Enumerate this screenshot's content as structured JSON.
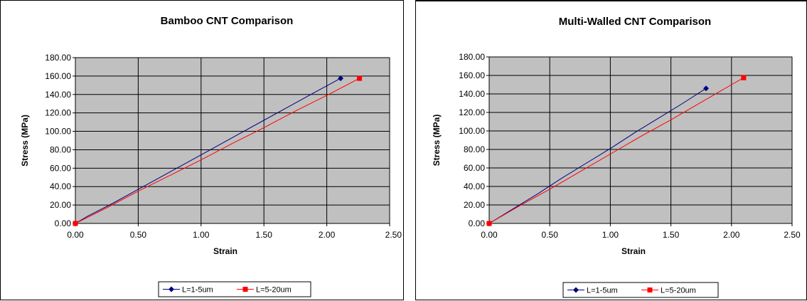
{
  "chart_data": [
    {
      "type": "line",
      "title": "Bamboo CNT Comparison",
      "xlabel": "Strain",
      "ylabel": "Stress (MPa)",
      "xlim": [
        0,
        2.5
      ],
      "ylim": [
        0,
        180
      ],
      "xticks": [
        "0.00",
        "0.50",
        "1.00",
        "1.50",
        "2.00",
        "2.50"
      ],
      "yticks": [
        "0.00",
        "20.00",
        "40.00",
        "60.00",
        "80.00",
        "100.00",
        "120.00",
        "140.00",
        "160.00",
        "180.00"
      ],
      "grid": true,
      "plot_background": "#c0c0c0",
      "legend_position": "bottom",
      "series": [
        {
          "name": "L=1-5um",
          "color": "#000080",
          "marker": "diamond",
          "x": [
            0,
            0.1,
            0.3,
            0.5,
            0.7,
            0.9,
            1.1,
            1.3,
            1.5,
            1.7,
            1.9,
            2.11
          ],
          "y": [
            0,
            8,
            22,
            37,
            52,
            67,
            82,
            97,
            112,
            127,
            142,
            157.5
          ]
        },
        {
          "name": "L=5-20um",
          "color": "#ff0000",
          "marker": "square",
          "x": [
            0,
            0.25,
            0.5,
            0.75,
            1.0,
            1.25,
            1.5,
            1.75,
            2.0,
            2.26
          ],
          "y": [
            0,
            17,
            35,
            52,
            69,
            87,
            104,
            122,
            139,
            157.5
          ]
        }
      ]
    },
    {
      "type": "line",
      "title": "Multi-Walled CNT Comparison",
      "xlabel": "Strain",
      "ylabel": "Stress (MPa)",
      "xlim": [
        0,
        2.5
      ],
      "ylim": [
        0,
        180
      ],
      "xticks": [
        "0.00",
        "0.50",
        "1.00",
        "1.50",
        "2.00",
        "2.50"
      ],
      "yticks": [
        "0.00",
        "20.00",
        "40.00",
        "60.00",
        "80.00",
        "100.00",
        "120.00",
        "140.00",
        "160.00",
        "180.00"
      ],
      "grid": true,
      "plot_background": "#c0c0c0",
      "legend_position": "bottom",
      "series": [
        {
          "name": "L=1-5um",
          "color": "#000080",
          "marker": "diamond",
          "x": [
            0,
            0.2,
            0.4,
            0.6,
            0.8,
            1.0,
            1.2,
            1.4,
            1.6,
            1.79
          ],
          "y": [
            0,
            16,
            32,
            49,
            65,
            81,
            98,
            114,
            130,
            146
          ]
        },
        {
          "name": "L=5-20um",
          "color": "#ff0000",
          "marker": "square",
          "x": [
            0,
            0.25,
            0.5,
            0.75,
            1.0,
            1.25,
            1.5,
            1.75,
            2.0,
            2.1
          ],
          "y": [
            0,
            19,
            37,
            56,
            75,
            94,
            112,
            131,
            150,
            157.5
          ]
        }
      ]
    }
  ]
}
